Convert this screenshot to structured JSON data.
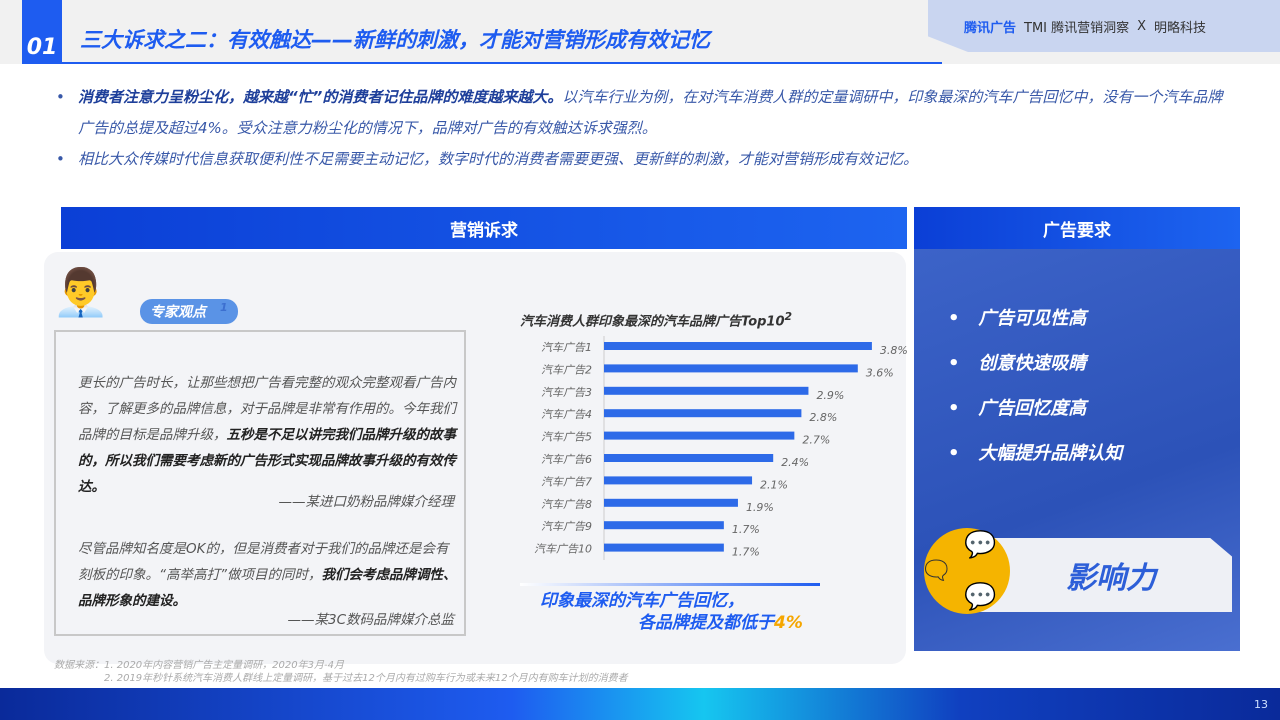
{
  "header": {
    "number": "01",
    "title": "三大诉求之二：有效触达——新鲜的刺激，才能对营销形成有效记忆",
    "logos": [
      "腾讯广告",
      "TMI 腾讯营销洞察",
      "X",
      "明略科技"
    ]
  },
  "bullets": [
    {
      "bold": "消费者注意力呈粉尘化，越来越“忙”的消费者记住品牌的难度越来越大。",
      "text": "以汽车行业为例，在对汽车消费人群的定量调研中，印象最深的汽车广告回忆中，没有一个汽车品牌广告的总提及超过4%。受众注意力粉尘化的情况下，品牌对广告的有效触达诉求强烈。"
    },
    {
      "bold": "",
      "text": "相比大众传媒时代信息获取便利性不足需要主动记忆，数字时代的消费者需要更强、更新鲜的刺激，才能对营销形成有效记忆。"
    }
  ],
  "left": {
    "header": "营销诉求",
    "tag": "专家观点",
    "tag_sup": "1",
    "quotes": [
      {
        "text": "更长的广告时长，让那些想把广告看完整的观众完整观看广告内容，了解更多的品牌信息，对于品牌是非常有作用的。今年我们品牌的目标是品牌升级，",
        "bold": "五秒是不足以讲完我们品牌升级的故事的，所以我们需要考虑新的广告形式实现品牌故事升级的有效传达。",
        "attr": "——某进口奶粉品牌媒介经理"
      },
      {
        "text": "尽管品牌知名度是OK的，但是消费者对于我们的品牌还是会有刻板的印象。“高举高打”做项目的同时，",
        "bold": "我们会考虑品牌调性、品牌形象的建设。",
        "attr": "——某3C数码品牌媒介总监"
      }
    ],
    "conclusion": {
      "line1": "印象最深的汽车广告回忆，",
      "line2": "各品牌提及都低于",
      "highlight": "4%"
    }
  },
  "chart_data": {
    "type": "bar",
    "orientation": "horizontal",
    "title": "汽车消费人群印象最深的汽车品牌广告Top10",
    "title_sup": "2",
    "categories": [
      "汽车广告1",
      "汽车广告2",
      "汽车广告3",
      "汽车广告4",
      "汽车广告5",
      "汽车广告6",
      "汽车广告7",
      "汽车广告8",
      "汽车广告9",
      "汽车广告10"
    ],
    "values": [
      3.8,
      3.6,
      2.9,
      2.8,
      2.7,
      2.4,
      2.1,
      1.9,
      1.7,
      1.7
    ],
    "labels": [
      "3.8%",
      "3.6%",
      "2.9%",
      "2.8%",
      "2.7%",
      "2.4%",
      "2.1%",
      "1.9%",
      "1.7%",
      "1.7%"
    ],
    "unit": "%",
    "xlim": [
      0,
      4
    ],
    "grid": false,
    "bar_color": "#2d6ae8"
  },
  "right": {
    "header": "广告要求",
    "items": [
      "广告可见性高",
      "创意快速吸睛",
      "广告回忆度高",
      "大幅提升品牌认知"
    ],
    "impact": "影响力"
  },
  "source": {
    "line1": "数据来源：1. 2020年内容营销广告主定量调研，2020年3月-4月",
    "line2": "2. 2019年秒针系统汽车消费人群线上定量调研，基于过去12个月内有过购车行为或未来12个月内有购车计划的消费者"
  },
  "page": "13",
  "colors": {
    "accent": "#1e5cf0",
    "highlight": "#f5a600"
  }
}
